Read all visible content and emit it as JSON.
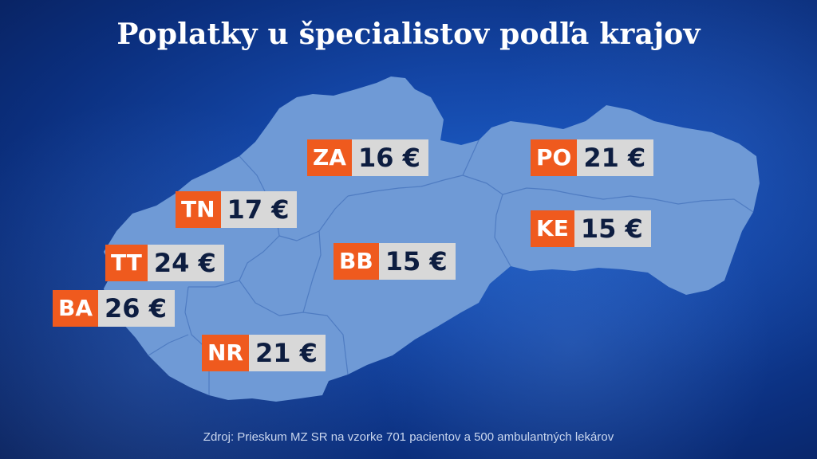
{
  "title": "Poplatky u špecialistov podľa krajov",
  "regions": [
    {
      "code": "ZA",
      "value": "16 €"
    },
    {
      "code": "PO",
      "value": "21 €"
    },
    {
      "code": "TN",
      "value": "17 €"
    },
    {
      "code": "KE",
      "value": "15 €"
    },
    {
      "code": "TT",
      "value": "24 €"
    },
    {
      "code": "BB",
      "value": "15 €"
    },
    {
      "code": "BA",
      "value": "26 €"
    },
    {
      "code": "NR",
      "value": "21 €"
    }
  ],
  "source": "Zdroj: Prieskum MZ SR na vzorke 701 pacientov a 500 ambulantných lekárov",
  "colors": {
    "background": "#1447a8",
    "map_fill": "#6f9ad6",
    "code_bg": "#ef5a1e",
    "value_bg": "#d8d8d8",
    "value_text": "#0d1d40"
  }
}
